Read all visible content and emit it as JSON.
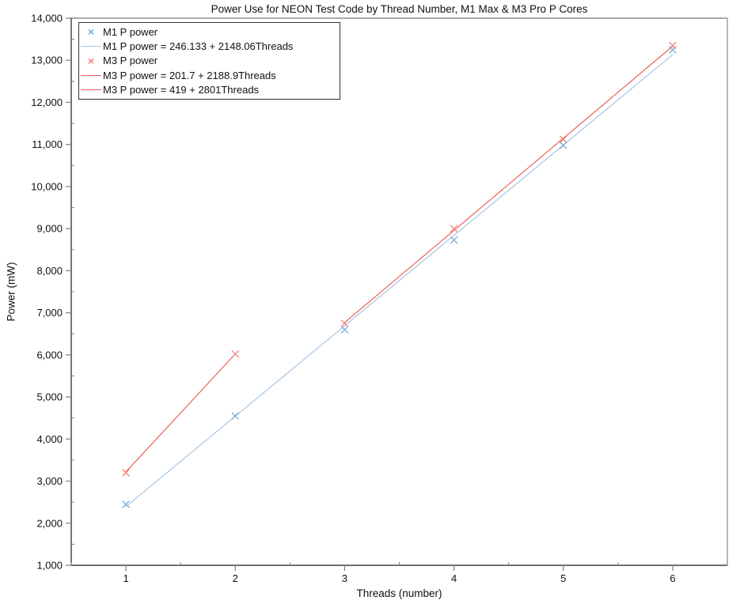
{
  "window": {
    "background": "#ffffff"
  },
  "chart_data": {
    "type": "scatter",
    "title": "Power Use for NEON Test Code by Thread Number, M1 Max & M3 Pro P Cores",
    "xlabel": "Threads (number)",
    "ylabel": "Power (mW)",
    "xlim": [
      0.5,
      6.5
    ],
    "ylim": [
      1000,
      14000
    ],
    "x_major_ticks": [
      1,
      2,
      3,
      4,
      5,
      6
    ],
    "x_minor_step": 0.5,
    "y_major_step": 1000,
    "y_minor_step": 500,
    "grid": false,
    "legend_position": "top-left",
    "axis_style": {
      "axis_color": "#1a1a1a",
      "frame_top_color": "#555555",
      "frame_right_color": "#909090",
      "tick_color": "#808080",
      "tick_label_color": "#111111"
    },
    "series": [
      {
        "name": "M1 P power",
        "kind": "scatter",
        "marker": "x",
        "color": "#74a9d8",
        "x": [
          1,
          2,
          3,
          4,
          5,
          6
        ],
        "y": [
          2450,
          4550,
          6600,
          8730,
          10980,
          13250
        ]
      },
      {
        "name": "M1 P power = 246.133 + 2148.06Threads",
        "kind": "fit-line",
        "color": "#a6c6e4",
        "intercept": 246.133,
        "slope": 2148.06,
        "x_range": [
          1,
          6
        ]
      },
      {
        "name": "M3 P power",
        "kind": "scatter",
        "marker": "x",
        "color": "#f0837a",
        "x": [
          1,
          2,
          3,
          4,
          5,
          6
        ],
        "y": [
          3200,
          6020,
          6750,
          9000,
          11120,
          13350
        ]
      },
      {
        "name": "M3 P power = 201.7 + 2188.9Threads",
        "kind": "fit-line",
        "color": "#ed6156",
        "intercept": 201.7,
        "slope": 2188.9,
        "x_range": [
          3,
          6
        ]
      },
      {
        "name": "M3 P power = 419 + 2801Threads",
        "kind": "fit-line",
        "color": "#ed6156",
        "intercept": 419,
        "slope": 2801,
        "x_range": [
          1,
          2
        ]
      }
    ],
    "legend": [
      {
        "symbol": "x-marker",
        "color": "#74a9d8",
        "label": "M1 P power"
      },
      {
        "symbol": "line",
        "color": "#a6c6e4",
        "label": "M1 P power = 246.133 + 2148.06Threads"
      },
      {
        "symbol": "x-marker",
        "color": "#f0837a",
        "label": "M3 P power"
      },
      {
        "symbol": "line",
        "color": "#ed6156",
        "label": "M3 P power = 201.7 + 2188.9Threads"
      },
      {
        "symbol": "line",
        "color": "#ed6156",
        "label": "M3 P power = 419 + 2801Threads"
      }
    ]
  }
}
